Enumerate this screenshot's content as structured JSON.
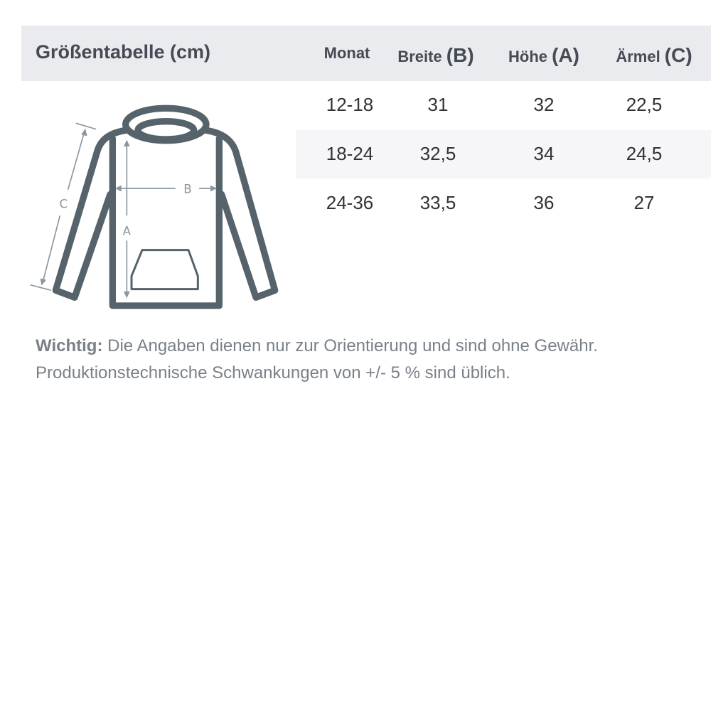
{
  "header": {
    "title": "Größentabelle (cm)",
    "columns": [
      {
        "label": "Monat",
        "letter": ""
      },
      {
        "label": "Breite ",
        "letter": "(B)"
      },
      {
        "label": "Höhe ",
        "letter": "(A)"
      },
      {
        "label": "Ärmel ",
        "letter": "(C)"
      }
    ]
  },
  "rows": [
    [
      "12-18",
      "31",
      "32",
      "22,5"
    ],
    [
      "18-24",
      "32,5",
      "34",
      "24,5"
    ],
    [
      "24-36",
      "33,5",
      "36",
      "27"
    ]
  ],
  "diagram": {
    "label_a": "A",
    "label_b": "B",
    "label_c": "C"
  },
  "note": {
    "bold": "Wichtig:",
    "line1": " Die Angaben dienen nur zur Orientierung und sind ohne Gewähr.",
    "line2": "Produktionstechnische Schwankungen von +/- 5 % sind üblich."
  },
  "colors": {
    "header_bg": "#eaebef",
    "outline": "#56636a",
    "measure": "#8a96a0"
  }
}
